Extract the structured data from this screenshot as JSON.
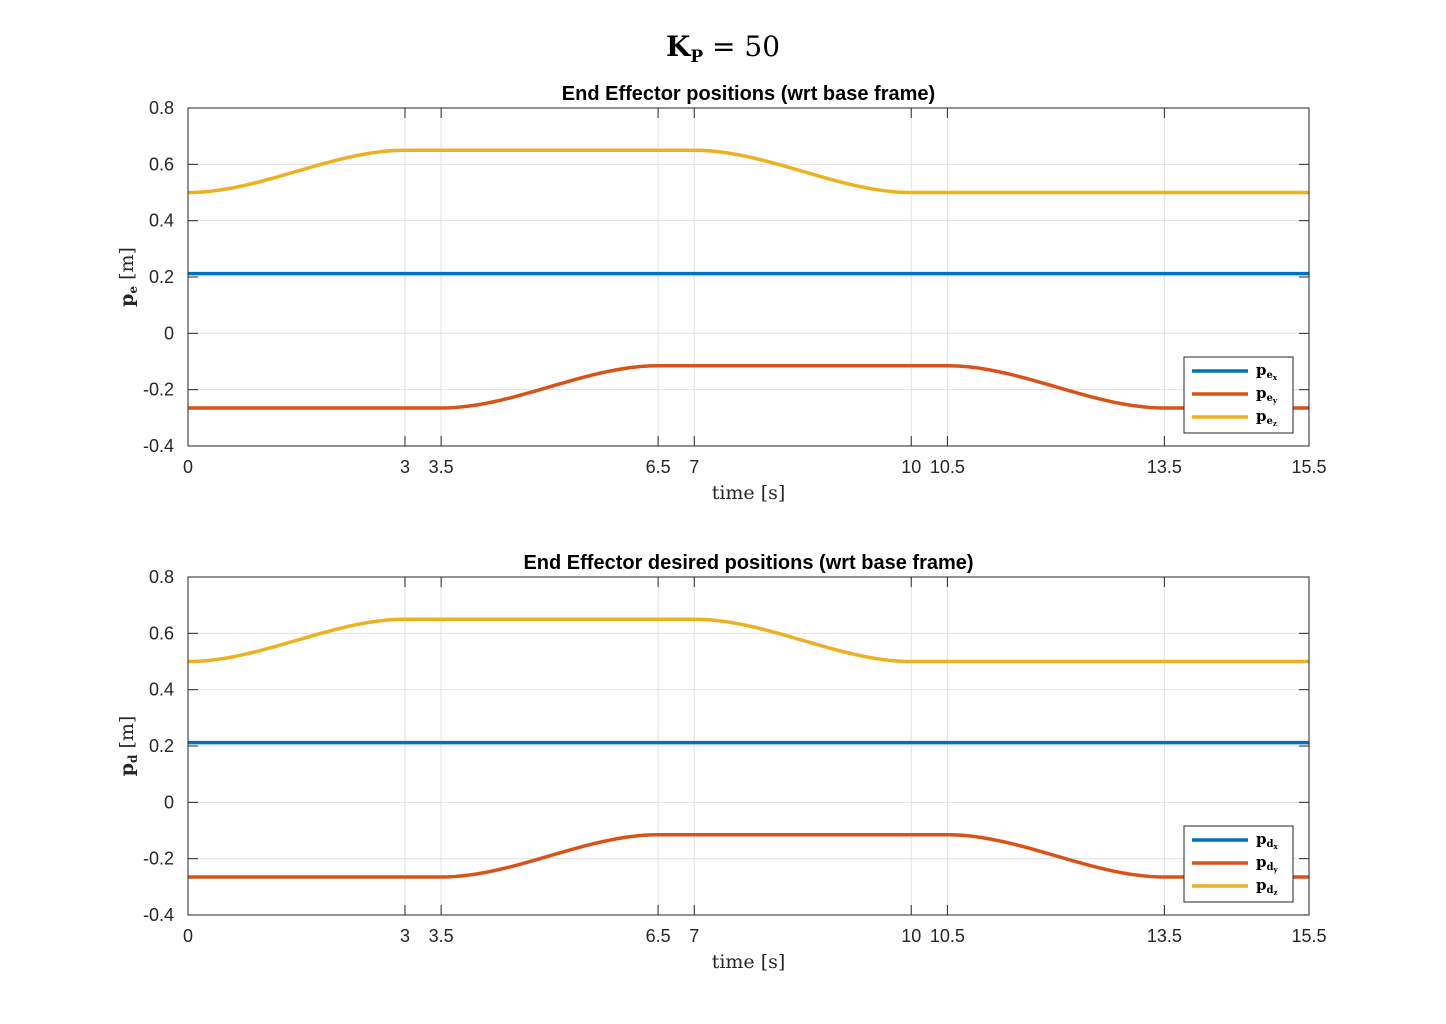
{
  "figure": {
    "suptitle": {
      "main": "K",
      "sub": "P",
      "rest": " = 50"
    }
  },
  "chart_data": [
    {
      "type": "line",
      "title": "End Effector positions (wrt base frame)",
      "xlabel": "time [s]",
      "ylabel": {
        "symbol": "p",
        "sub": "e",
        "unit": " [m]"
      },
      "xlim": [
        0,
        15.5
      ],
      "ylim": [
        -0.4,
        0.8
      ],
      "xticks": [
        0,
        3,
        3.5,
        6.5,
        7,
        10,
        10.5,
        13.5,
        15.5
      ],
      "xtick_labels": [
        "0",
        "3",
        "3.5",
        "6.5",
        "7",
        "10",
        "10.5",
        "13.5",
        "15.5"
      ],
      "yticks": [
        -0.4,
        -0.2,
        0,
        0.2,
        0.4,
        0.6,
        0.8
      ],
      "ytick_labels": [
        "-0.4",
        "-0.2",
        "0",
        "0.2",
        "0.4",
        "0.6",
        "0.8"
      ],
      "grid": true,
      "legend_position": "bottom-right",
      "series": [
        {
          "name": {
            "symbol": "p",
            "sub": "e",
            "sub2": "x"
          },
          "color": "#0072BD",
          "x": [
            0,
            3,
            3.5,
            6.5,
            7,
            10,
            10.5,
            13.5,
            15.5
          ],
          "y": [
            0.212,
            0.212,
            0.212,
            0.212,
            0.212,
            0.212,
            0.212,
            0.212,
            0.212
          ]
        },
        {
          "name": {
            "symbol": "p",
            "sub": "e",
            "sub2": "y"
          },
          "color": "#D95319",
          "x": [
            0,
            3,
            3.5,
            6.5,
            7,
            10,
            10.5,
            13.5,
            15.5
          ],
          "y": [
            -0.265,
            -0.265,
            -0.265,
            -0.115,
            -0.115,
            -0.115,
            -0.115,
            -0.265,
            -0.265
          ]
        },
        {
          "name": {
            "symbol": "p",
            "sub": "e",
            "sub2": "z"
          },
          "color": "#EDB120",
          "x": [
            0,
            3,
            3.5,
            6.5,
            7,
            10,
            10.5,
            13.5,
            15.5
          ],
          "y": [
            0.5,
            0.65,
            0.65,
            0.65,
            0.65,
            0.5,
            0.5,
            0.5,
            0.5
          ]
        }
      ]
    },
    {
      "type": "line",
      "title": "End Effector desired positions (wrt base frame)",
      "xlabel": "time [s]",
      "ylabel": {
        "symbol": "p",
        "sub": "d",
        "unit": " [m]"
      },
      "xlim": [
        0,
        15.5
      ],
      "ylim": [
        -0.4,
        0.8
      ],
      "xticks": [
        0,
        3,
        3.5,
        6.5,
        7,
        10,
        10.5,
        13.5,
        15.5
      ],
      "xtick_labels": [
        "0",
        "3",
        "3.5",
        "6.5",
        "7",
        "10",
        "10.5",
        "13.5",
        "15.5"
      ],
      "yticks": [
        -0.4,
        -0.2,
        0,
        0.2,
        0.4,
        0.6,
        0.8
      ],
      "ytick_labels": [
        "-0.4",
        "-0.2",
        "0",
        "0.2",
        "0.4",
        "0.6",
        "0.8"
      ],
      "grid": true,
      "legend_position": "bottom-right",
      "series": [
        {
          "name": {
            "symbol": "p",
            "sub": "d",
            "sub2": "x"
          },
          "color": "#0072BD",
          "x": [
            0,
            3,
            3.5,
            6.5,
            7,
            10,
            10.5,
            13.5,
            15.5
          ],
          "y": [
            0.212,
            0.212,
            0.212,
            0.212,
            0.212,
            0.212,
            0.212,
            0.212,
            0.212
          ]
        },
        {
          "name": {
            "symbol": "p",
            "sub": "d",
            "sub2": "y"
          },
          "color": "#D95319",
          "x": [
            0,
            3,
            3.5,
            6.5,
            7,
            10,
            10.5,
            13.5,
            15.5
          ],
          "y": [
            -0.265,
            -0.265,
            -0.265,
            -0.115,
            -0.115,
            -0.115,
            -0.115,
            -0.265,
            -0.265
          ]
        },
        {
          "name": {
            "symbol": "p",
            "sub": "d",
            "sub2": "z"
          },
          "color": "#EDB120",
          "x": [
            0,
            3,
            3.5,
            6.5,
            7,
            10,
            10.5,
            13.5,
            15.5
          ],
          "y": [
            0.5,
            0.65,
            0.65,
            0.65,
            0.65,
            0.5,
            0.5,
            0.5,
            0.5
          ]
        }
      ]
    }
  ]
}
